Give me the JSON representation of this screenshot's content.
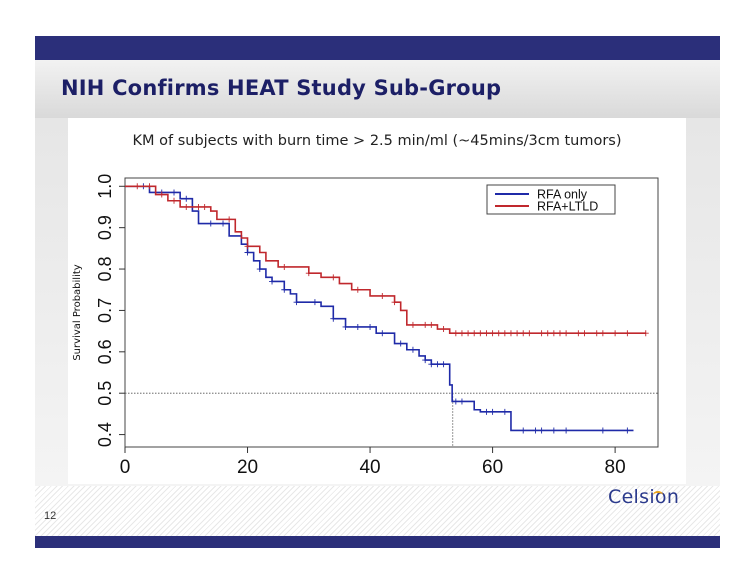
{
  "slide": {
    "title": "NIH Confirms HEAT Study Sub-Group",
    "page_number": "12",
    "logo_text": "Celsion",
    "colors": {
      "band": "#2b2f7a",
      "title": "#1c1f66",
      "logo": "#2b3a8c",
      "logo_accent": "#e8a21b"
    }
  },
  "chart_data": {
    "type": "line",
    "subtype": "kaplan-meier step",
    "title": "KM of subjects with burn time > 2.5 min/ml (~45mins/3cm tumors)",
    "xlabel": "",
    "ylabel": "Survival Probability",
    "xlim": [
      0,
      87
    ],
    "ylim": [
      0.37,
      1.02
    ],
    "x_ticks": [
      "0",
      "20",
      "40",
      "60",
      "80"
    ],
    "y_ticks": [
      "0.4",
      "0.5",
      "0.6",
      "0.7",
      "0.8",
      "0.9",
      "1.0"
    ],
    "x_tick_values": [
      0,
      20,
      40,
      60,
      80
    ],
    "y_tick_values": [
      0.4,
      0.5,
      0.6,
      0.7,
      0.8,
      0.9,
      1.0
    ],
    "reference_lines": {
      "horizontal_y": 0.5,
      "vertical_x": 53.5
    },
    "legend": {
      "placement": "top-right",
      "entries": [
        "RFA only",
        "RFA+LTLD"
      ]
    },
    "series": [
      {
        "name": "RFA only",
        "color": "#1f2aa8",
        "steps": [
          [
            0,
            1.0
          ],
          [
            4,
            0.985
          ],
          [
            9,
            0.97
          ],
          [
            11,
            0.94
          ],
          [
            12,
            0.91
          ],
          [
            17,
            0.88
          ],
          [
            19,
            0.86
          ],
          [
            20,
            0.84
          ],
          [
            21,
            0.82
          ],
          [
            22,
            0.8
          ],
          [
            23,
            0.78
          ],
          [
            24,
            0.77
          ],
          [
            26,
            0.75
          ],
          [
            27,
            0.74
          ],
          [
            28,
            0.72
          ],
          [
            32,
            0.71
          ],
          [
            34,
            0.68
          ],
          [
            36,
            0.66
          ],
          [
            41,
            0.645
          ],
          [
            44,
            0.62
          ],
          [
            46,
            0.605
          ],
          [
            48,
            0.59
          ],
          [
            49,
            0.58
          ],
          [
            50,
            0.57
          ],
          [
            53,
            0.52
          ],
          [
            53.4,
            0.48
          ],
          [
            54,
            0.48
          ],
          [
            57,
            0.46
          ],
          [
            58,
            0.455
          ],
          [
            63,
            0.41
          ],
          [
            83,
            0.41
          ]
        ],
        "censor_x": [
          3,
          6,
          8,
          10,
          14,
          16,
          20,
          22,
          24,
          26,
          28,
          31,
          34,
          36,
          38,
          40,
          42,
          45,
          47,
          49,
          50,
          51,
          52,
          54,
          55,
          59,
          60,
          62,
          65,
          67,
          68,
          70,
          72,
          78,
          82
        ]
      },
      {
        "name": "RFA+LTLD",
        "color": "#c0282d",
        "steps": [
          [
            0,
            1.0
          ],
          [
            5,
            0.98
          ],
          [
            7,
            0.965
          ],
          [
            9,
            0.95
          ],
          [
            14,
            0.94
          ],
          [
            15,
            0.92
          ],
          [
            18,
            0.89
          ],
          [
            19,
            0.875
          ],
          [
            20,
            0.855
          ],
          [
            22,
            0.84
          ],
          [
            23,
            0.82
          ],
          [
            25,
            0.805
          ],
          [
            30,
            0.79
          ],
          [
            32,
            0.78
          ],
          [
            35,
            0.765
          ],
          [
            37,
            0.75
          ],
          [
            40,
            0.735
          ],
          [
            44,
            0.72
          ],
          [
            45,
            0.7
          ],
          [
            46,
            0.665
          ],
          [
            51,
            0.655
          ],
          [
            53,
            0.645
          ],
          [
            85,
            0.645
          ]
        ],
        "censor_x": [
          2,
          4,
          6,
          8,
          10,
          12,
          13,
          17,
          20,
          26,
          30,
          34,
          38,
          42,
          44,
          47,
          49,
          50,
          52,
          54,
          55,
          56,
          57,
          58,
          59,
          60,
          61,
          62,
          63,
          64,
          65,
          66,
          68,
          69,
          70,
          71,
          72,
          74,
          75,
          77,
          78,
          80,
          82,
          85
        ]
      }
    ]
  }
}
